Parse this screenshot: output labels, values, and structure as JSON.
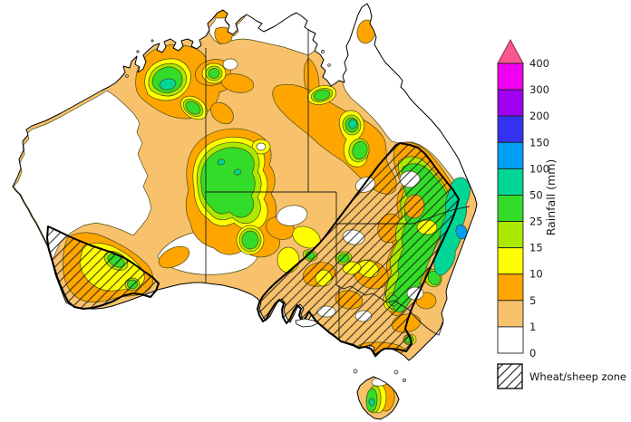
{
  "legend": {
    "axis_title": "Rainfall (mm)",
    "arrow_color": "#F9578F",
    "segments": [
      {
        "tick": "400",
        "color": "#F000F0"
      },
      {
        "tick": "300",
        "color": "#A000F0"
      },
      {
        "tick": "200",
        "color": "#3333F0"
      },
      {
        "tick": "150",
        "color": "#009FF5"
      },
      {
        "tick": "100",
        "color": "#00D696"
      },
      {
        "tick": "50",
        "color": "#33DC28"
      },
      {
        "tick": "25",
        "color": "#ACE800"
      },
      {
        "tick": "15",
        "color": "#FFFF00"
      },
      {
        "tick": "10",
        "color": "#FFA500"
      },
      {
        "tick": "5",
        "color": "#F7C26B"
      },
      {
        "tick": "1",
        "color": "#FFFFFF"
      }
    ],
    "bottom_tick": "0",
    "wheat_zone_label": "Wheat/sheep zone"
  },
  "map_colors": {
    "rain_0_1": "#FFFFFF",
    "rain_1_5": "#F7C26B",
    "rain_5_10": "#FFA500",
    "rain_10_15": "#FFFF00",
    "rain_15_25": "#ACE800",
    "rain_25_50": "#33DC28",
    "rain_50_100": "#00D696",
    "rain_100_150": "#009FF5",
    "coastline": "#000000"
  }
}
